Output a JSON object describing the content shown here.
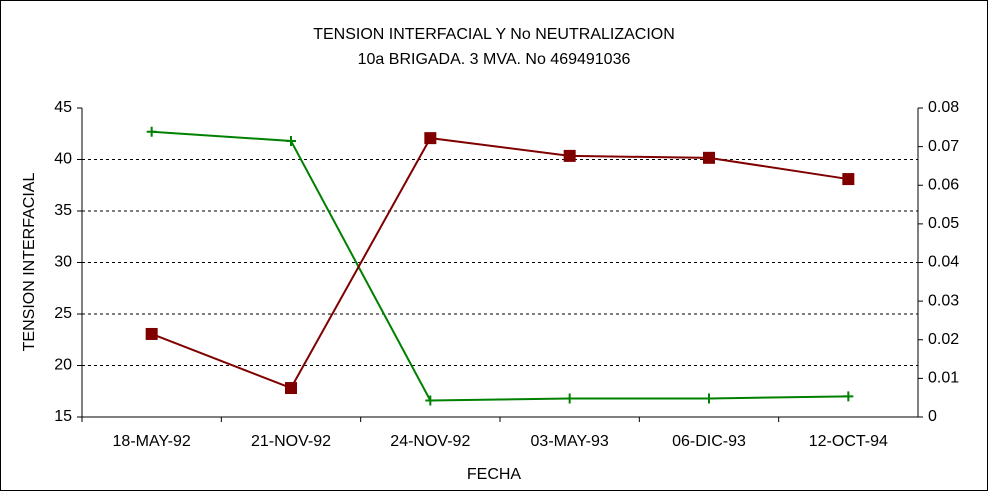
{
  "chart_data": {
    "type": "line",
    "title": "TENSION INTERFACIAL Y No NEUTRALIZACION",
    "subtitle": "10a BRIGADA. 3 MVA. No 469491036",
    "x_label": "FECHA",
    "y_label": "TENSION INTERFACIAL",
    "categories": [
      "18-MAY-92",
      "21-NOV-92",
      "24-NOV-92",
      "03-MAY-93",
      "06-DIC-93",
      "12-OCT-94"
    ],
    "series": [
      {
        "color": "#008000",
        "marker": "plus",
        "values": [
          42.7,
          41.8,
          16.6,
          16.8,
          16.8,
          17.0
        ]
      },
      {
        "color": "#800000",
        "marker": "square",
        "axis": "y2",
        "values": [
          0.0215,
          0.0075,
          0.0722,
          0.0676,
          0.0671,
          0.0616
        ]
      }
    ],
    "ylim": [
      15,
      45
    ],
    "yticks": [
      15,
      20,
      25,
      30,
      35,
      40,
      45
    ],
    "y2lim": [
      0,
      0.08
    ],
    "y2ticks": [
      0,
      0.01,
      0.02,
      0.03,
      0.04,
      0.05,
      0.06,
      0.07,
      0.08
    ],
    "grid": true
  }
}
